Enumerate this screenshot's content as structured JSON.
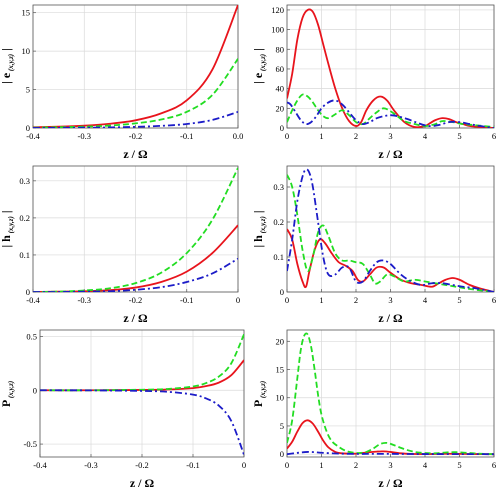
{
  "colors": {
    "x": "#e8141c",
    "y": "#22dd22",
    "z": "#1c1cc8"
  },
  "chart_data": [
    {
      "id": "p1",
      "type": "line",
      "xlabel": "z / Ω",
      "ylabel_main": "| e",
      "ylabel_sub": "(x,y,z)",
      "ylabel_end": " |",
      "xlim": [
        -0.4,
        0
      ],
      "ylim": [
        0,
        16
      ],
      "xticks": [
        -0.4,
        -0.3,
        -0.2,
        -0.1,
        0.0
      ],
      "xtick_labels": [
        "-0.4",
        "-0.3",
        "-0.2",
        "-0.1",
        "0.0"
      ],
      "yticks": [
        0,
        5,
        10,
        15
      ],
      "ytick_labels": [
        "0",
        "5",
        "10",
        "15"
      ],
      "x": [
        -0.4,
        -0.35,
        -0.3,
        -0.25,
        -0.2,
        -0.15,
        -0.1,
        -0.05,
        0.0
      ],
      "series": [
        {
          "key": "x",
          "style": "solid",
          "values": [
            0.1,
            0.17,
            0.3,
            0.55,
            1.0,
            1.9,
            3.6,
            7.6,
            16.0
          ]
        },
        {
          "key": "y",
          "style": "dash",
          "values": [
            0.05,
            0.1,
            0.17,
            0.32,
            0.6,
            1.1,
            2.1,
            4.3,
            9.0
          ]
        },
        {
          "key": "z",
          "style": "dashdot",
          "values": [
            0.01,
            0.02,
            0.04,
            0.08,
            0.15,
            0.28,
            0.52,
            1.05,
            2.1
          ]
        }
      ]
    },
    {
      "id": "p2",
      "type": "line",
      "xlabel": "z / Ω",
      "ylabel_main": "| e",
      "ylabel_sub": "(x,y,z)",
      "ylabel_end": " |",
      "xlim": [
        0,
        6
      ],
      "ylim": [
        0,
        125
      ],
      "xticks": [
        0,
        1,
        2,
        3,
        4,
        5,
        6
      ],
      "xtick_labels": [
        "0",
        "1",
        "2",
        "3",
        "4",
        "5",
        "6"
      ],
      "yticks": [
        0,
        20,
        40,
        60,
        80,
        100,
        120
      ],
      "ytick_labels": [
        "0",
        "20",
        "40",
        "60",
        "80",
        "100",
        "120"
      ],
      "series": [
        {
          "key": "x",
          "style": "solid",
          "x": [
            0,
            0.15,
            0.3,
            0.45,
            0.6,
            0.75,
            0.9,
            1.05,
            1.2,
            1.4,
            1.6,
            1.8,
            2.0,
            2.15,
            2.3,
            2.5,
            2.7,
            2.9,
            3.1,
            3.4,
            3.7,
            4.0,
            4.15,
            4.3,
            4.5,
            4.7,
            4.9,
            5.1,
            5.3,
            5.6,
            6.0
          ],
          "values": [
            30,
            55,
            90,
            112,
            120,
            118,
            105,
            85,
            65,
            40,
            20,
            7,
            2,
            6,
            18,
            28,
            32,
            28,
            18,
            6,
            1,
            2,
            5,
            8,
            10,
            9,
            6,
            4,
            2,
            1,
            0
          ]
        },
        {
          "key": "y",
          "style": "dash",
          "x": [
            0,
            0.15,
            0.3,
            0.45,
            0.6,
            0.75,
            0.9,
            1.05,
            1.2,
            1.4,
            1.6,
            1.8,
            2.0,
            2.2,
            2.4,
            2.6,
            2.8,
            3.0,
            3.2,
            3.4,
            3.7,
            4.0,
            4.3,
            4.5,
            4.8,
            5.1,
            5.4,
            6.0
          ],
          "values": [
            6,
            18,
            28,
            34,
            32,
            26,
            18,
            12,
            10,
            14,
            18,
            13,
            6,
            4,
            10,
            16,
            20,
            17,
            12,
            7,
            4,
            2,
            4,
            7,
            6,
            4,
            3,
            1
          ]
        },
        {
          "key": "z",
          "style": "dashdot",
          "x": [
            0,
            0.1,
            0.25,
            0.4,
            0.55,
            0.7,
            0.85,
            1.0,
            1.2,
            1.4,
            1.6,
            1.8,
            2.0,
            2.2,
            2.4,
            2.6,
            2.8,
            3.0,
            3.2,
            3.5,
            3.8,
            4.1,
            4.4,
            4.7,
            5.0,
            5.3,
            5.6,
            6.0
          ],
          "values": [
            26,
            24,
            16,
            8,
            4,
            6,
            12,
            20,
            26,
            28,
            24,
            16,
            8,
            4,
            6,
            10,
            12,
            13,
            12,
            9,
            5,
            2,
            3,
            6,
            6,
            4,
            2,
            0
          ]
        }
      ]
    },
    {
      "id": "p3",
      "type": "line",
      "xlabel": "z / Ω",
      "ylabel_main": "| h",
      "ylabel_sub": "(x,y,z)",
      "ylabel_end": " |",
      "xlim": [
        -0.4,
        0
      ],
      "ylim": [
        0,
        0.34
      ],
      "xticks": [
        -0.4,
        -0.3,
        -0.2,
        -0.1,
        0.0
      ],
      "xtick_labels": [
        "-0.4",
        "-0.3",
        "-0.2",
        "-0.1",
        "0"
      ],
      "yticks": [
        0,
        0.1,
        0.2,
        0.3
      ],
      "ytick_labels": [
        "0",
        "0.1",
        "0.2",
        "0.3"
      ],
      "x": [
        -0.4,
        -0.35,
        -0.3,
        -0.25,
        -0.2,
        -0.15,
        -0.1,
        -0.05,
        0.0
      ],
      "series": [
        {
          "key": "x",
          "style": "solid",
          "values": [
            0.0,
            0.001,
            0.002,
            0.005,
            0.012,
            0.027,
            0.055,
            0.105,
            0.18
          ]
        },
        {
          "key": "y",
          "style": "dash",
          "values": [
            0.0,
            0.001,
            0.004,
            0.01,
            0.024,
            0.052,
            0.105,
            0.195,
            0.335
          ]
        },
        {
          "key": "z",
          "style": "dashdot",
          "values": [
            0.0,
            0.0,
            0.001,
            0.002,
            0.006,
            0.013,
            0.027,
            0.05,
            0.09
          ]
        }
      ]
    },
    {
      "id": "p4",
      "type": "line",
      "xlabel": "z / Ω",
      "ylabel_main": "| h",
      "ylabel_sub": "(x,y,z)",
      "ylabel_end": " |",
      "xlim": [
        0,
        6
      ],
      "ylim": [
        0,
        0.36
      ],
      "xticks": [
        0,
        1,
        2,
        3,
        4,
        5,
        6
      ],
      "xtick_labels": [
        "0",
        "1",
        "2",
        "3",
        "4",
        "5",
        "6"
      ],
      "yticks": [
        0,
        0.1,
        0.2,
        0.3
      ],
      "ytick_labels": [
        "0",
        "0.1",
        "0.2",
        "0.3"
      ],
      "series": [
        {
          "key": "x",
          "style": "solid",
          "x": [
            0,
            0.15,
            0.3,
            0.45,
            0.55,
            0.65,
            0.8,
            0.95,
            1.1,
            1.3,
            1.5,
            1.7,
            1.9,
            2.05,
            2.2,
            2.4,
            2.6,
            2.8,
            3.0,
            3.3,
            3.6,
            3.9,
            4.2,
            4.4,
            4.6,
            4.8,
            5.0,
            5.3,
            5.6,
            6.0
          ],
          "values": [
            0.18,
            0.15,
            0.08,
            0.03,
            0.015,
            0.06,
            0.12,
            0.15,
            0.14,
            0.11,
            0.085,
            0.075,
            0.06,
            0.035,
            0.03,
            0.05,
            0.07,
            0.07,
            0.055,
            0.035,
            0.025,
            0.02,
            0.015,
            0.025,
            0.035,
            0.04,
            0.035,
            0.02,
            0.01,
            0.0
          ]
        },
        {
          "key": "y",
          "style": "dash",
          "x": [
            0,
            0.15,
            0.3,
            0.45,
            0.6,
            0.75,
            0.9,
            1.05,
            1.2,
            1.4,
            1.6,
            1.8,
            2.0,
            2.2,
            2.4,
            2.55,
            2.7,
            2.9,
            3.1,
            3.4,
            3.7,
            4.0,
            4.3,
            4.6,
            4.9,
            5.2,
            5.5,
            6.0
          ],
          "values": [
            0.335,
            0.3,
            0.22,
            0.12,
            0.06,
            0.1,
            0.17,
            0.19,
            0.16,
            0.11,
            0.09,
            0.09,
            0.085,
            0.08,
            0.05,
            0.025,
            0.03,
            0.05,
            0.045,
            0.03,
            0.035,
            0.03,
            0.025,
            0.02,
            0.015,
            0.01,
            0.006,
            0.0
          ]
        },
        {
          "key": "z",
          "style": "dashdot",
          "x": [
            0,
            0.15,
            0.3,
            0.45,
            0.55,
            0.65,
            0.75,
            0.9,
            1.05,
            1.2,
            1.4,
            1.6,
            1.8,
            2.0,
            2.2,
            2.4,
            2.6,
            2.8,
            3.0,
            3.3,
            3.6,
            3.9,
            4.2,
            4.5,
            4.8,
            5.1,
            5.5,
            6.0
          ],
          "values": [
            0.06,
            0.15,
            0.26,
            0.33,
            0.35,
            0.34,
            0.3,
            0.2,
            0.1,
            0.05,
            0.05,
            0.07,
            0.07,
            0.03,
            0.03,
            0.06,
            0.085,
            0.09,
            0.08,
            0.05,
            0.03,
            0.02,
            0.025,
            0.025,
            0.02,
            0.015,
            0.01,
            0.0
          ]
        }
      ]
    },
    {
      "id": "p5",
      "type": "line",
      "xlabel": "z / Ω",
      "ylabel_main": "P",
      "ylabel_sub": "(x,y,z)",
      "ylabel_end": "",
      "xlim": [
        -0.4,
        0
      ],
      "ylim": [
        -0.62,
        0.56
      ],
      "xticks": [
        -0.4,
        -0.3,
        -0.2,
        -0.1,
        0.0
      ],
      "xtick_labels": [
        "-0.4",
        "-0.3",
        "-0.2",
        "-0.1",
        "0"
      ],
      "yticks": [
        -0.5,
        0,
        0.5
      ],
      "ytick_labels": [
        "-0.5",
        "0",
        "0.5"
      ],
      "x": [
        -0.4,
        -0.3,
        -0.2,
        -0.15,
        -0.1,
        -0.075,
        -0.05,
        -0.025,
        0.0
      ],
      "series": [
        {
          "key": "x",
          "style": "solid",
          "values": [
            0.0,
            0.0,
            0.003,
            0.007,
            0.02,
            0.038,
            0.07,
            0.14,
            0.28
          ]
        },
        {
          "key": "y",
          "style": "dash",
          "values": [
            0.0,
            0.0,
            0.005,
            0.012,
            0.035,
            0.066,
            0.125,
            0.25,
            0.52
          ]
        },
        {
          "key": "z",
          "style": "dashdot",
          "values": [
            0.0,
            -0.001,
            -0.006,
            -0.014,
            -0.04,
            -0.075,
            -0.14,
            -0.285,
            -0.6
          ]
        }
      ]
    },
    {
      "id": "p6",
      "type": "line",
      "xlabel": "z / Ω",
      "ylabel_main": "P",
      "ylabel_sub": "(x,y,z)",
      "ylabel_end": "",
      "xlim": [
        0,
        6
      ],
      "ylim": [
        -0.5,
        22
      ],
      "xticks": [
        0,
        1,
        2,
        3,
        4,
        5,
        6
      ],
      "xtick_labels": [
        "0",
        "1",
        "2",
        "3",
        "4",
        "5",
        "6"
      ],
      "yticks": [
        0,
        5,
        10,
        15,
        20
      ],
      "ytick_labels": [
        "0",
        "5",
        "10",
        "15",
        "20"
      ],
      "series": [
        {
          "key": "x",
          "style": "solid",
          "x": [
            0,
            0.15,
            0.3,
            0.45,
            0.6,
            0.75,
            0.9,
            1.05,
            1.2,
            1.4,
            1.6,
            1.8,
            2.0,
            2.3,
            2.6,
            2.8,
            3.0,
            3.3,
            3.6,
            4.0,
            4.4,
            4.7,
            5.0,
            5.5,
            6.0
          ],
          "values": [
            1.0,
            2.2,
            4.0,
            5.5,
            6.0,
            5.4,
            4.0,
            2.4,
            1.2,
            0.4,
            0.15,
            0.1,
            0.1,
            0.3,
            0.45,
            0.5,
            0.4,
            0.15,
            0.05,
            0.02,
            0.05,
            0.08,
            0.05,
            0.02,
            0.0
          ]
        },
        {
          "key": "y",
          "style": "dash",
          "x": [
            0,
            0.15,
            0.3,
            0.4,
            0.5,
            0.6,
            0.7,
            0.8,
            0.9,
            1.0,
            1.15,
            1.3,
            1.5,
            1.7,
            1.9,
            2.1,
            2.3,
            2.5,
            2.7,
            2.9,
            3.1,
            3.4,
            3.7,
            4.0,
            4.3,
            4.6,
            4.9,
            5.3,
            5.7,
            6.0
          ],
          "values": [
            2.0,
            6.0,
            13.5,
            18.5,
            21.0,
            21.2,
            19.0,
            15.0,
            10.5,
            7.0,
            4.0,
            2.3,
            1.3,
            0.6,
            0.3,
            0.2,
            0.4,
            1.0,
            1.8,
            2.0,
            1.6,
            0.9,
            0.4,
            0.2,
            0.15,
            0.3,
            0.35,
            0.2,
            0.05,
            0.0
          ]
        },
        {
          "key": "z",
          "style": "dashdot",
          "x": [
            0,
            0.2,
            0.4,
            0.6,
            0.8,
            1.0,
            1.5,
            2.0,
            2.5,
            3.0,
            3.5,
            4.0,
            5.0,
            6.0
          ],
          "values": [
            0.0,
            0.15,
            0.3,
            0.4,
            0.35,
            0.25,
            0.1,
            0.05,
            0.05,
            0.05,
            0.03,
            0.02,
            0.01,
            0.0
          ]
        }
      ]
    }
  ]
}
